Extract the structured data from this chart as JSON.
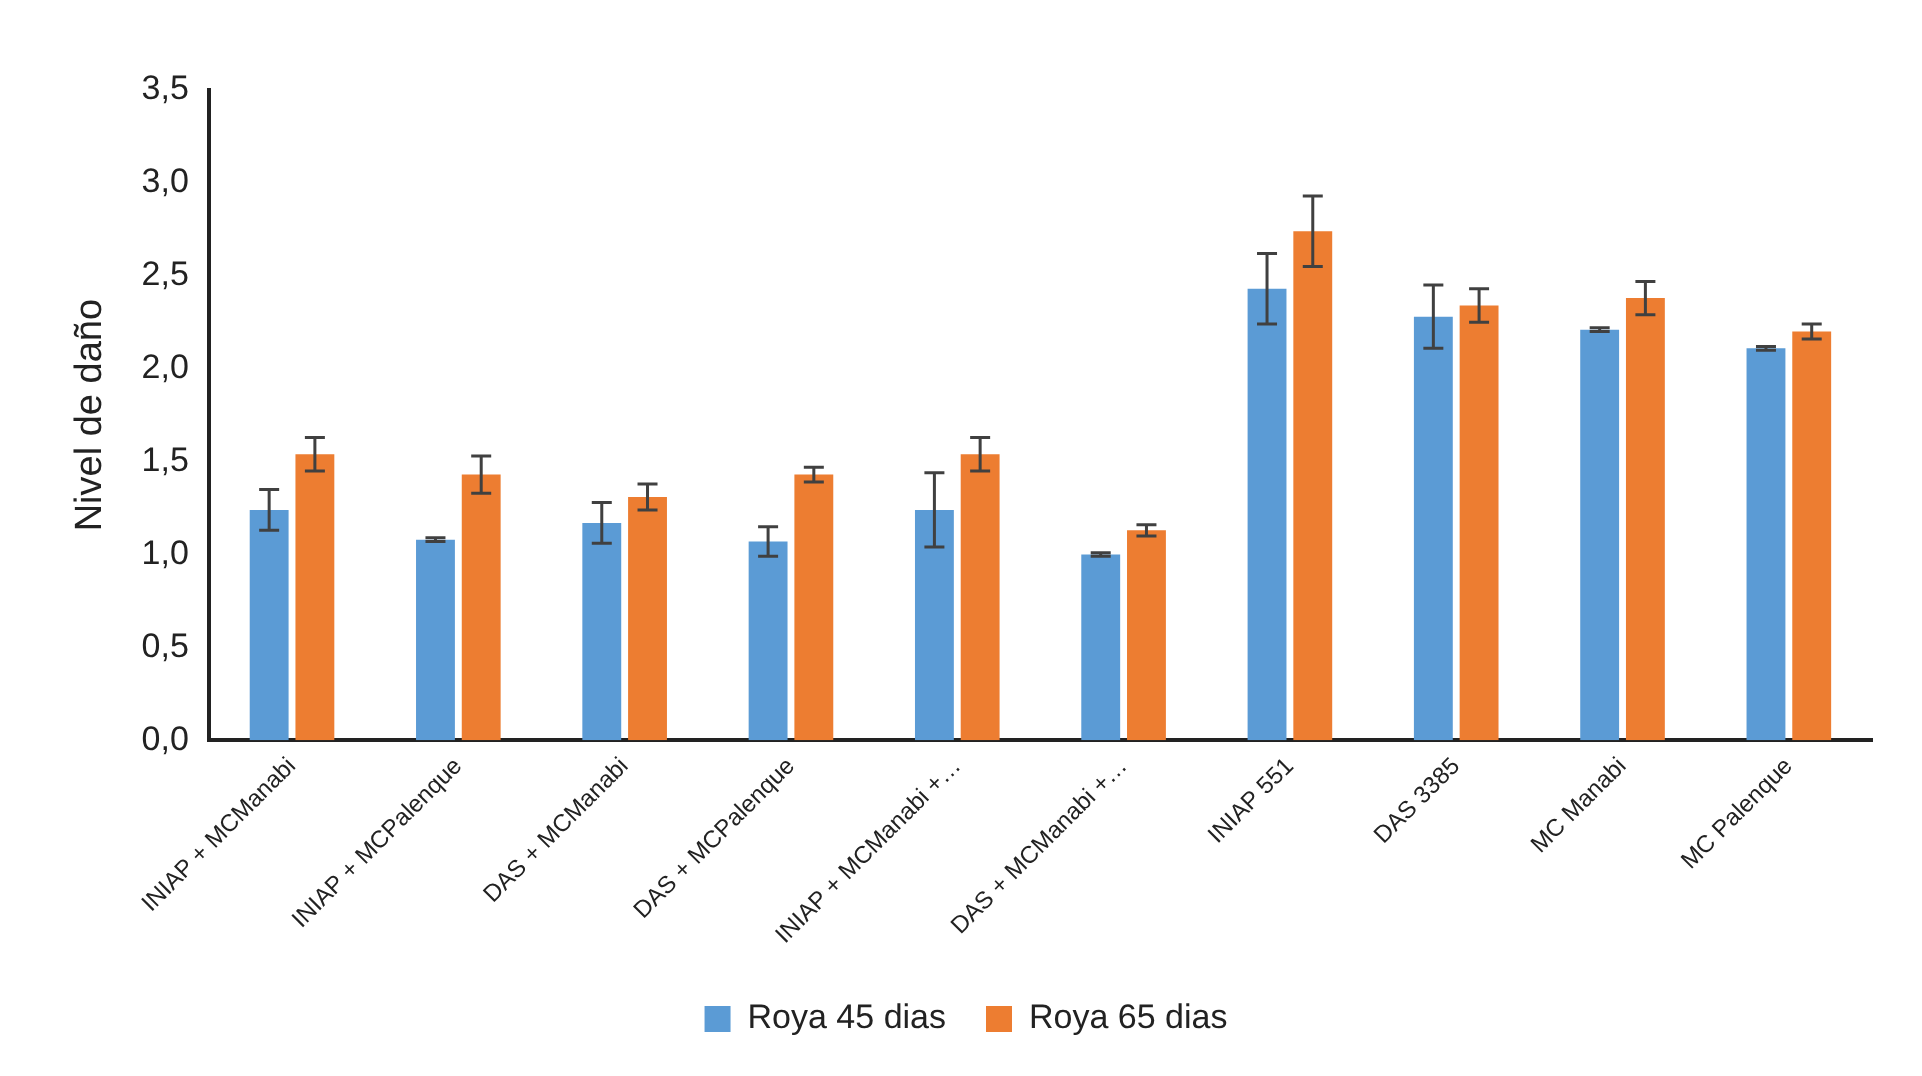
{
  "chart_data": {
    "type": "bar",
    "ylabel": "Nivel de daño",
    "categories": [
      "INIAP + MCManabi",
      "INIAP + MCPalenque",
      "DAS + MCManabi",
      "DAS + MCPalenque",
      "INIAP + MCManabi +…",
      "DAS + MCManabi +…",
      "INIAP 551",
      "DAS 3385",
      "MC Manabi",
      "MC Palenque"
    ],
    "series": [
      {
        "name": "Roya 45 dias",
        "color": "#5b9bd5",
        "values": [
          1.24,
          1.08,
          1.17,
          1.07,
          1.24,
          1.0,
          2.43,
          2.28,
          2.21,
          2.11
        ],
        "errors": [
          0.11,
          0.01,
          0.11,
          0.08,
          0.2,
          0.01,
          0.19,
          0.17,
          0.01,
          0.01
        ]
      },
      {
        "name": "Roya 65 dias",
        "color": "#ed7d31",
        "values": [
          1.54,
          1.43,
          1.31,
          1.43,
          1.54,
          1.13,
          2.74,
          2.34,
          2.38,
          2.2
        ],
        "errors": [
          0.09,
          0.1,
          0.07,
          0.04,
          0.09,
          0.03,
          0.19,
          0.09,
          0.09,
          0.04
        ]
      }
    ],
    "ylim": [
      0,
      3.5
    ],
    "yticks": [
      {
        "value": 0,
        "label": "0,0"
      },
      {
        "value": 0.5,
        "label": "0,5"
      },
      {
        "value": 1,
        "label": "1,0"
      },
      {
        "value": 1.5,
        "label": "1,5"
      },
      {
        "value": 2,
        "label": "2,0"
      },
      {
        "value": 2.5,
        "label": "2,5"
      },
      {
        "value": 3,
        "label": "3,0"
      },
      {
        "value": 3.5,
        "label": "3,5"
      }
    ],
    "grid": false,
    "legend": "bottom"
  }
}
